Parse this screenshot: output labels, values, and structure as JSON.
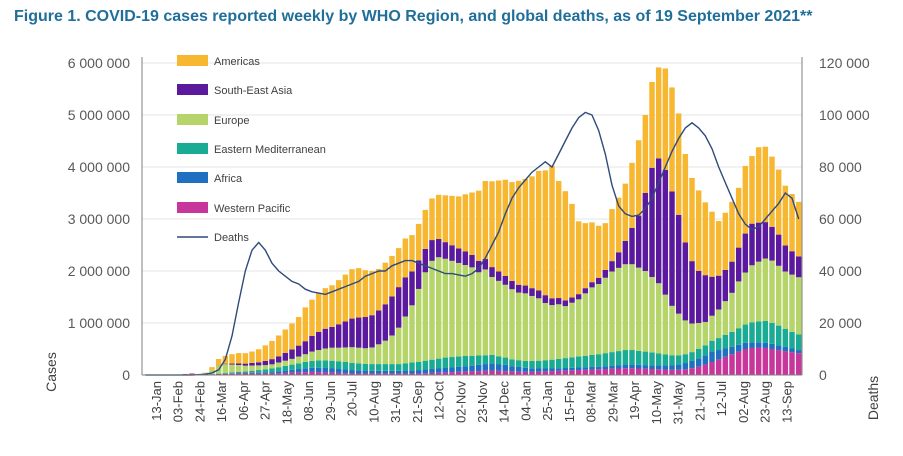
{
  "title": "Figure 1. COVID-19 cases reported weekly by WHO Region, and global deaths, as of 19 September 2021**",
  "chart_data": {
    "type": "bar",
    "stacked": true,
    "ylabel": "Cases",
    "y2label": "Deaths",
    "ylim": [
      0,
      6000000
    ],
    "y2lim": [
      0,
      120000
    ],
    "yticks": [
      "0",
      "1 000 000",
      "2 000 000",
      "3 000 000",
      "4 000 000",
      "5 000 000",
      "6 000 000"
    ],
    "y2ticks": [
      "0",
      "20 000",
      "40 000",
      "60 000",
      "80 000",
      "100 000",
      "120 000"
    ],
    "legend_position": "top-left",
    "xtick_labels": [
      "13-Jan",
      "03-Feb",
      "24-Feb",
      "16-Mar",
      "06-Apr",
      "27-Apr",
      "18-May",
      "08-Jun",
      "29-Jun",
      "20-Jul",
      "10-Aug",
      "31-Aug",
      "21-Sep",
      "12-Oct",
      "02-Nov",
      "23-Nov",
      "14-Dec",
      "04-Jan",
      "25-Jan",
      "15-Feb",
      "08-Mar",
      "29-Mar",
      "19-Apr",
      "10-May",
      "31-May",
      "21-Jun",
      "12-Jul",
      "02-Aug",
      "23-Aug",
      "13-Sep"
    ],
    "colors": {
      "Americas": "#f7b731",
      "South-East Asia": "#5b1a9e",
      "Europe": "#b5d56a",
      "Eastern Mediterranean": "#1aab94",
      "Africa": "#1f70c1",
      "Western Pacific": "#c7379b",
      "Deaths": "#2e4b7a"
    },
    "series": [
      {
        "name": "Americas",
        "values": [
          0,
          0,
          0,
          0,
          0,
          0,
          0,
          0,
          0,
          10000,
          50000,
          120000,
          150000,
          180000,
          200000,
          200000,
          220000,
          250000,
          300000,
          350000,
          400000,
          450000,
          500000,
          550000,
          650000,
          700000,
          750000,
          780000,
          800000,
          850000,
          900000,
          950000,
          950000,
          900000,
          850000,
          800000,
          800000,
          780000,
          750000,
          750000,
          700000,
          700000,
          750000,
          800000,
          850000,
          900000,
          950000,
          1000000,
          1100000,
          1200000,
          1350000,
          1500000,
          1650000,
          1750000,
          1850000,
          1900000,
          2000000,
          2050000,
          2150000,
          2300000,
          2400000,
          2550000,
          2250000,
          2100000,
          1800000,
          1400000,
          1250000,
          1150000,
          1000000,
          900000,
          1000000,
          1050000,
          1100000,
          1250000,
          1450000,
          1500000,
          1650000,
          1750000,
          1950000,
          2000000,
          1950000,
          1700000,
          1600000,
          1550000,
          1400000,
          1250000,
          1050000,
          1100000,
          1150000,
          1150000,
          1300000,
          1300000,
          1450000,
          1450000,
          1350000,
          1250000,
          1150000,
          1100000,
          1050000
        ]
      },
      {
        "name": "South-East Asia",
        "values": [
          0,
          0,
          0,
          0,
          0,
          0,
          0,
          0,
          0,
          0,
          0,
          5000,
          10000,
          20000,
          30000,
          40000,
          50000,
          60000,
          80000,
          100000,
          120000,
          150000,
          180000,
          210000,
          250000,
          300000,
          350000,
          380000,
          400000,
          450000,
          500000,
          550000,
          580000,
          600000,
          620000,
          650000,
          700000,
          750000,
          780000,
          750000,
          650000,
          550000,
          450000,
          400000,
          350000,
          320000,
          300000,
          280000,
          260000,
          240000,
          220000,
          200000,
          190000,
          180000,
          170000,
          160000,
          150000,
          150000,
          150000,
          150000,
          150000,
          130000,
          120000,
          110000,
          100000,
          100000,
          100000,
          100000,
          120000,
          150000,
          200000,
          300000,
          450000,
          700000,
          1000000,
          1500000,
          2100000,
          2400000,
          2400000,
          2200000,
          1900000,
          1500000,
          1200000,
          1000000,
          900000,
          750000,
          650000,
          600000,
          600000,
          650000,
          750000,
          800000,
          750000,
          700000,
          650000,
          600000,
          500000,
          450000,
          400000
        ]
      },
      {
        "name": "Europe",
        "values": [
          0,
          0,
          0,
          0,
          0,
          0,
          0,
          0,
          0,
          20000,
          80000,
          150000,
          170000,
          150000,
          130000,
          110000,
          100000,
          90000,
          80000,
          80000,
          90000,
          100000,
          110000,
          130000,
          150000,
          180000,
          200000,
          230000,
          250000,
          260000,
          280000,
          300000,
          300000,
          300000,
          320000,
          380000,
          450000,
          550000,
          700000,
          900000,
          1100000,
          1400000,
          1700000,
          1900000,
          1950000,
          1900000,
          1850000,
          1800000,
          1750000,
          1700000,
          1600000,
          1650000,
          1500000,
          1450000,
          1400000,
          1350000,
          1300000,
          1300000,
          1250000,
          1200000,
          1100000,
          1050000,
          1050000,
          1000000,
          1050000,
          1100000,
          1200000,
          1300000,
          1350000,
          1450000,
          1550000,
          1600000,
          1650000,
          1650000,
          1600000,
          1550000,
          1450000,
          1350000,
          1150000,
          950000,
          800000,
          650000,
          550000,
          500000,
          450000,
          480000,
          550000,
          650000,
          750000,
          900000,
          1000000,
          1100000,
          1150000,
          1200000,
          1200000,
          1150000,
          1100000,
          1100000,
          1100000
        ]
      },
      {
        "name": "Eastern Mediterranean",
        "values": [
          0,
          0,
          0,
          0,
          0,
          0,
          0,
          0,
          0,
          0,
          5000,
          10000,
          15000,
          20000,
          25000,
          30000,
          40000,
          50000,
          60000,
          70000,
          80000,
          90000,
          100000,
          110000,
          120000,
          130000,
          140000,
          145000,
          150000,
          150000,
          145000,
          140000,
          135000,
          130000,
          130000,
          130000,
          130000,
          130000,
          130000,
          140000,
          150000,
          160000,
          170000,
          180000,
          190000,
          200000,
          200000,
          200000,
          200000,
          190000,
          180000,
          170000,
          160000,
          150000,
          140000,
          130000,
          130000,
          130000,
          140000,
          150000,
          160000,
          170000,
          180000,
          190000,
          200000,
          210000,
          220000,
          230000,
          240000,
          250000,
          260000,
          270000,
          280000,
          280000,
          270000,
          260000,
          250000,
          230000,
          210000,
          190000,
          180000,
          170000,
          170000,
          180000,
          190000,
          210000,
          230000,
          260000,
          290000,
          320000,
          350000,
          380000,
          400000,
          420000,
          400000,
          380000,
          350000,
          320000,
          300000
        ]
      },
      {
        "name": "Africa",
        "values": [
          0,
          0,
          0,
          0,
          0,
          0,
          0,
          0,
          0,
          0,
          1000,
          2000,
          3000,
          5000,
          7000,
          9000,
          12000,
          15000,
          20000,
          25000,
          35000,
          45000,
          55000,
          65000,
          75000,
          80000,
          85000,
          85000,
          80000,
          75000,
          70000,
          65000,
          60000,
          55000,
          50000,
          50000,
          50000,
          50000,
          50000,
          55000,
          60000,
          65000,
          70000,
          75000,
          80000,
          85000,
          90000,
          95000,
          100000,
          110000,
          120000,
          130000,
          140000,
          130000,
          120000,
          100000,
          90000,
          80000,
          70000,
          60000,
          55000,
          50000,
          50000,
          50000,
          50000,
          50000,
          50000,
          50000,
          50000,
          55000,
          60000,
          65000,
          70000,
          70000,
          70000,
          70000,
          70000,
          75000,
          80000,
          90000,
          100000,
          120000,
          140000,
          160000,
          180000,
          200000,
          180000,
          160000,
          140000,
          130000,
          120000,
          110000,
          100000,
          100000,
          100000,
          90000,
          80000,
          70000,
          60000
        ]
      },
      {
        "name": "Western Pacific",
        "values": [
          1000,
          1000,
          2000,
          3000,
          5000,
          10000,
          20000,
          30000,
          20000,
          15000,
          15000,
          20000,
          20000,
          25000,
          30000,
          30000,
          30000,
          30000,
          30000,
          30000,
          35000,
          40000,
          45000,
          50000,
          55000,
          60000,
          55000,
          50000,
          45000,
          40000,
          35000,
          30000,
          30000,
          30000,
          30000,
          30000,
          30000,
          30000,
          30000,
          30000,
          30000,
          30000,
          35000,
          40000,
          45000,
          50000,
          55000,
          60000,
          65000,
          70000,
          75000,
          80000,
          85000,
          80000,
          75000,
          70000,
          65000,
          60000,
          60000,
          65000,
          70000,
          75000,
          80000,
          85000,
          90000,
          95000,
          100000,
          105000,
          110000,
          115000,
          120000,
          125000,
          130000,
          130000,
          125000,
          120000,
          115000,
          110000,
          105000,
          100000,
          100000,
          110000,
          130000,
          160000,
          200000,
          250000,
          300000,
          350000,
          400000,
          450000,
          500000,
          520000,
          530000,
          520000,
          500000,
          480000,
          460000,
          440000,
          420000
        ]
      }
    ],
    "deaths": [
      0,
      0,
      0,
      0,
      0,
      0,
      0,
      0,
      100,
      300,
      800,
      2000,
      6000,
      15000,
      28000,
      40000,
      48000,
      51000,
      48000,
      43000,
      40000,
      38000,
      36000,
      35000,
      33000,
      32000,
      31500,
      31000,
      32000,
      33000,
      34000,
      35000,
      36000,
      38000,
      39000,
      40000,
      40000,
      42000,
      43000,
      44000,
      44000,
      43000,
      42000,
      41000,
      40000,
      39000,
      39000,
      38500,
      38000,
      39000,
      41000,
      45000,
      50000,
      55000,
      62000,
      68000,
      72000,
      75000,
      78000,
      80000,
      82000,
      80000,
      85000,
      90000,
      95000,
      99000,
      101000,
      100000,
      94000,
      85000,
      73000,
      65000,
      62000,
      61000,
      61500,
      64000,
      68000,
      74000,
      80000,
      86000,
      91000,
      95000,
      97000,
      95000,
      92000,
      87000,
      80000,
      74000,
      68000,
      62000,
      58000,
      56000,
      57000,
      60000,
      63000,
      66000,
      70000,
      68000,
      60000
    ]
  },
  "legend": {
    "americas": "Americas",
    "south_east_asia": "South-East Asia",
    "europe": "Europe",
    "eastern_mediterranean": "Eastern Mediterranean",
    "africa": "Africa",
    "western_pacific": "Western Pacific",
    "deaths": "Deaths"
  }
}
